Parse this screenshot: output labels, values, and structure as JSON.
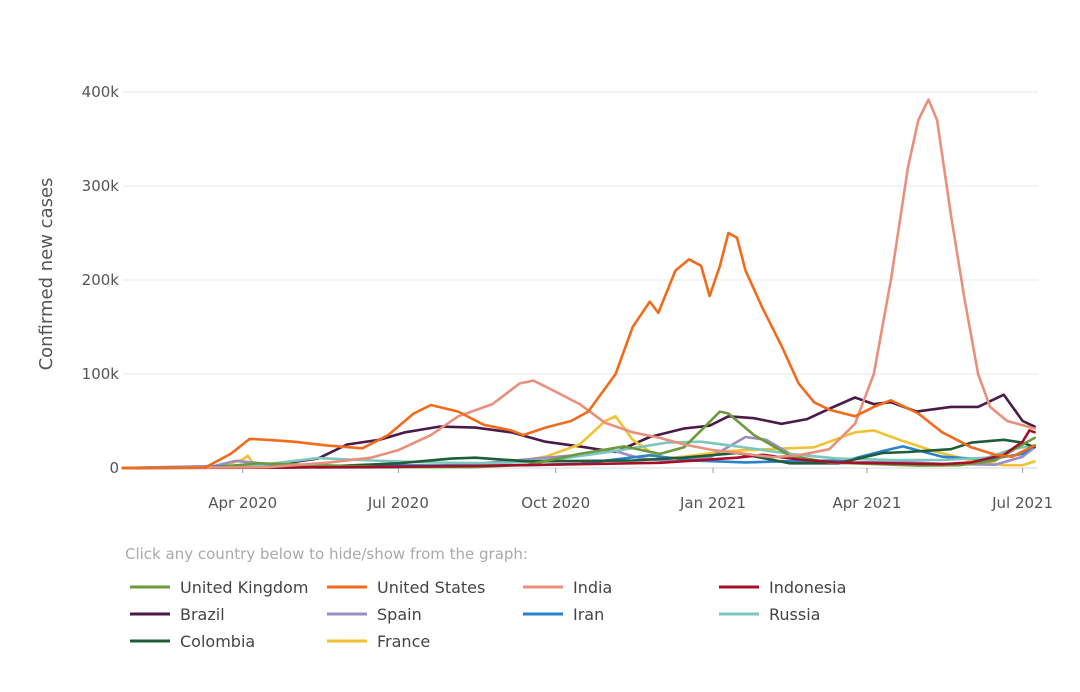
{
  "chart_data": {
    "type": "line",
    "title": "",
    "xlabel": "",
    "ylabel": "Confirmed new cases",
    "ylim": [
      0,
      400000
    ],
    "xlim": [
      "2020-01-22",
      "2021-07-10"
    ],
    "grid": "horizontal",
    "y_ticks": [
      {
        "value": 0,
        "label": "0"
      },
      {
        "value": 100000,
        "label": "100k"
      },
      {
        "value": 200000,
        "label": "200k"
      },
      {
        "value": 300000,
        "label": "300k"
      },
      {
        "value": 400000,
        "label": "400k"
      }
    ],
    "x_ticks": [
      {
        "date": "2020-04-01",
        "label": "Apr 2020"
      },
      {
        "date": "2020-07-01",
        "label": "Jul 2020"
      },
      {
        "date": "2020-10-01",
        "label": "Oct 2020"
      },
      {
        "date": "2021-01-01",
        "label": "Jan 2021"
      },
      {
        "date": "2021-04-01",
        "label": "Apr 2021"
      },
      {
        "date": "2021-07-01",
        "label": "Jul 2021"
      }
    ],
    "legend_hint": "Click any country below to hide/show from the graph:",
    "legend_placement": "bottom",
    "series": [
      {
        "name": "United Kingdom",
        "color": "#6a9a3a",
        "points": [
          [
            "2020-01-22",
            0
          ],
          [
            "2020-03-15",
            500
          ],
          [
            "2020-04-10",
            5000
          ],
          [
            "2020-05-15",
            3000
          ],
          [
            "2020-07-01",
            800
          ],
          [
            "2020-08-15",
            1000
          ],
          [
            "2020-09-15",
            3500
          ],
          [
            "2020-10-15",
            15000
          ],
          [
            "2020-11-10",
            23000
          ],
          [
            "2020-12-01",
            15000
          ],
          [
            "2020-12-15",
            22000
          ],
          [
            "2020-12-25",
            40000
          ],
          [
            "2021-01-05",
            60000
          ],
          [
            "2021-01-10",
            58000
          ],
          [
            "2021-01-25",
            35000
          ],
          [
            "2021-02-15",
            13000
          ],
          [
            "2021-03-10",
            6000
          ],
          [
            "2021-04-01",
            4500
          ],
          [
            "2021-05-01",
            2500
          ],
          [
            "2021-05-25",
            3000
          ],
          [
            "2021-06-15",
            8000
          ],
          [
            "2021-07-01",
            25000
          ],
          [
            "2021-07-08",
            32000
          ]
        ]
      },
      {
        "name": "United States",
        "color": "#f26b1b",
        "points": [
          [
            "2020-01-22",
            0
          ],
          [
            "2020-03-10",
            500
          ],
          [
            "2020-03-25",
            15000
          ],
          [
            "2020-04-05",
            31000
          ],
          [
            "2020-04-15",
            30000
          ],
          [
            "2020-05-01",
            28000
          ],
          [
            "2020-05-20",
            24000
          ],
          [
            "2020-06-10",
            21000
          ],
          [
            "2020-06-25",
            35000
          ],
          [
            "2020-07-10",
            58000
          ],
          [
            "2020-07-20",
            67000
          ],
          [
            "2020-08-05",
            60000
          ],
          [
            "2020-08-20",
            46000
          ],
          [
            "2020-09-05",
            40000
          ],
          [
            "2020-09-12",
            35000
          ],
          [
            "2020-09-25",
            43000
          ],
          [
            "2020-10-10",
            50000
          ],
          [
            "2020-10-20",
            60000
          ],
          [
            "2020-11-05",
            100000
          ],
          [
            "2020-11-15",
            150000
          ],
          [
            "2020-11-25",
            177000
          ],
          [
            "2020-11-30",
            165000
          ],
          [
            "2020-12-10",
            210000
          ],
          [
            "2020-12-18",
            222000
          ],
          [
            "2020-12-25",
            215000
          ],
          [
            "2020-12-30",
            183000
          ],
          [
            "2021-01-05",
            215000
          ],
          [
            "2021-01-10",
            250000
          ],
          [
            "2021-01-15",
            245000
          ],
          [
            "2021-01-20",
            210000
          ],
          [
            "2021-01-30",
            170000
          ],
          [
            "2021-02-10",
            130000
          ],
          [
            "2021-02-20",
            90000
          ],
          [
            "2021-03-01",
            70000
          ],
          [
            "2021-03-10",
            62000
          ],
          [
            "2021-03-25",
            55000
          ],
          [
            "2021-04-05",
            65000
          ],
          [
            "2021-04-15",
            72000
          ],
          [
            "2021-05-01",
            58000
          ],
          [
            "2021-05-15",
            38000
          ],
          [
            "2021-06-01",
            22000
          ],
          [
            "2021-06-15",
            14000
          ],
          [
            "2021-06-25",
            12000
          ],
          [
            "2021-07-08",
            24000
          ]
        ]
      },
      {
        "name": "India",
        "color": "#e8907c",
        "points": [
          [
            "2020-01-22",
            0
          ],
          [
            "2020-04-15",
            800
          ],
          [
            "2020-05-20",
            5500
          ],
          [
            "2020-06-15",
            11000
          ],
          [
            "2020-07-01",
            19000
          ],
          [
            "2020-07-20",
            35000
          ],
          [
            "2020-08-05",
            55000
          ],
          [
            "2020-08-25",
            68000
          ],
          [
            "2020-09-10",
            90000
          ],
          [
            "2020-09-18",
            93000
          ],
          [
            "2020-09-30",
            82000
          ],
          [
            "2020-10-15",
            68000
          ],
          [
            "2020-10-30",
            48000
          ],
          [
            "2020-11-15",
            38000
          ],
          [
            "2020-12-01",
            32000
          ],
          [
            "2020-12-15",
            25000
          ],
          [
            "2021-01-01",
            19000
          ],
          [
            "2021-01-20",
            15000
          ],
          [
            "2021-02-05",
            11500
          ],
          [
            "2021-02-20",
            13500
          ],
          [
            "2021-03-10",
            20000
          ],
          [
            "2021-03-25",
            47000
          ],
          [
            "2021-04-05",
            100000
          ],
          [
            "2021-04-15",
            200000
          ],
          [
            "2021-04-25",
            320000
          ],
          [
            "2021-05-01",
            370000
          ],
          [
            "2021-05-07",
            392000
          ],
          [
            "2021-05-12",
            370000
          ],
          [
            "2021-05-20",
            270000
          ],
          [
            "2021-05-28",
            180000
          ],
          [
            "2021-06-05",
            100000
          ],
          [
            "2021-06-12",
            65000
          ],
          [
            "2021-06-22",
            50000
          ],
          [
            "2021-07-08",
            42000
          ]
        ]
      },
      {
        "name": "Indonesia",
        "color": "#a50f2a",
        "points": [
          [
            "2020-01-22",
            0
          ],
          [
            "2020-04-15",
            300
          ],
          [
            "2020-06-15",
            1200
          ],
          [
            "2020-08-15",
            2200
          ],
          [
            "2020-10-15",
            4000
          ],
          [
            "2020-12-01",
            5500
          ],
          [
            "2021-01-15",
            11000
          ],
          [
            "2021-01-30",
            14000
          ],
          [
            "2021-02-20",
            9000
          ],
          [
            "2021-03-15",
            6000
          ],
          [
            "2021-04-15",
            5000
          ],
          [
            "2021-05-15",
            4000
          ],
          [
            "2021-06-01",
            6000
          ],
          [
            "2021-06-20",
            14000
          ],
          [
            "2021-07-01",
            28000
          ],
          [
            "2021-07-05",
            40000
          ],
          [
            "2021-07-08",
            38000
          ]
        ]
      },
      {
        "name": "Brazil",
        "color": "#4a1a4a",
        "points": [
          [
            "2020-01-22",
            0
          ],
          [
            "2020-04-01",
            1000
          ],
          [
            "2020-04-25",
            5000
          ],
          [
            "2020-05-15",
            10000
          ],
          [
            "2020-06-01",
            25000
          ],
          [
            "2020-06-20",
            30000
          ],
          [
            "2020-07-05",
            38000
          ],
          [
            "2020-07-25",
            44000
          ],
          [
            "2020-08-15",
            43000
          ],
          [
            "2020-09-05",
            38000
          ],
          [
            "2020-09-25",
            28000
          ],
          [
            "2020-10-15",
            23000
          ],
          [
            "2020-11-05",
            17000
          ],
          [
            "2020-11-25",
            33000
          ],
          [
            "2020-12-15",
            42000
          ],
          [
            "2020-12-30",
            45000
          ],
          [
            "2021-01-10",
            55000
          ],
          [
            "2021-01-25",
            53000
          ],
          [
            "2021-02-10",
            47000
          ],
          [
            "2021-02-25",
            52000
          ],
          [
            "2021-03-10",
            63000
          ],
          [
            "2021-03-25",
            75000
          ],
          [
            "2021-04-05",
            68000
          ],
          [
            "2021-04-15",
            70000
          ],
          [
            "2021-04-30",
            60000
          ],
          [
            "2021-05-20",
            65000
          ],
          [
            "2021-06-05",
            65000
          ],
          [
            "2021-06-20",
            78000
          ],
          [
            "2021-07-01",
            50000
          ],
          [
            "2021-07-08",
            44000
          ]
        ]
      },
      {
        "name": "Spain",
        "color": "#9b8ec4",
        "points": [
          [
            "2020-01-22",
            0
          ],
          [
            "2020-03-15",
            2000
          ],
          [
            "2020-03-28",
            7500
          ],
          [
            "2020-04-15",
            4500
          ],
          [
            "2020-05-15",
            500
          ],
          [
            "2020-07-01",
            500
          ],
          [
            "2020-08-15",
            4500
          ],
          [
            "2020-09-20",
            10000
          ],
          [
            "2020-10-15",
            14000
          ],
          [
            "2020-11-01",
            20000
          ],
          [
            "2020-11-20",
            10000
          ],
          [
            "2020-12-10",
            7000
          ],
          [
            "2020-12-31",
            12000
          ],
          [
            "2021-01-20",
            33000
          ],
          [
            "2021-02-01",
            30000
          ],
          [
            "2021-02-20",
            10000
          ],
          [
            "2021-03-15",
            5000
          ],
          [
            "2021-04-15",
            7000
          ],
          [
            "2021-05-15",
            4500
          ],
          [
            "2021-06-15",
            3500
          ],
          [
            "2021-07-01",
            12000
          ],
          [
            "2021-07-08",
            22000
          ]
        ]
      },
      {
        "name": "Iran",
        "color": "#2a83c8",
        "points": [
          [
            "2020-01-22",
            0
          ],
          [
            "2020-03-10",
            800
          ],
          [
            "2020-04-01",
            3000
          ],
          [
            "2020-05-10",
            1500
          ],
          [
            "2020-06-10",
            3000
          ],
          [
            "2020-08-01",
            2500
          ],
          [
            "2020-09-15",
            3000
          ],
          [
            "2020-10-15",
            4500
          ],
          [
            "2020-11-25",
            13500
          ],
          [
            "2020-12-20",
            8000
          ],
          [
            "2021-01-20",
            6000
          ],
          [
            "2021-02-20",
            7500
          ],
          [
            "2021-03-20",
            8000
          ],
          [
            "2021-04-10",
            18000
          ],
          [
            "2021-04-22",
            23000
          ],
          [
            "2021-05-15",
            12000
          ],
          [
            "2021-06-10",
            9000
          ],
          [
            "2021-07-01",
            15000
          ],
          [
            "2021-07-08",
            24000
          ]
        ]
      },
      {
        "name": "Russia",
        "color": "#7ec7bf",
        "points": [
          [
            "2020-01-22",
            0
          ],
          [
            "2020-04-01",
            800
          ],
          [
            "2020-05-01",
            7500
          ],
          [
            "2020-05-15",
            10500
          ],
          [
            "2020-06-15",
            8000
          ],
          [
            "2020-07-20",
            5800
          ],
          [
            "2020-08-30",
            5000
          ],
          [
            "2020-10-01",
            9000
          ],
          [
            "2020-11-01",
            17000
          ],
          [
            "2020-12-05",
            27000
          ],
          [
            "2020-12-25",
            28000
          ],
          [
            "2021-01-15",
            23000
          ],
          [
            "2021-02-15",
            15000
          ],
          [
            "2021-03-15",
            10000
          ],
          [
            "2021-04-15",
            8500
          ],
          [
            "2021-05-15",
            8500
          ],
          [
            "2021-06-10",
            11000
          ],
          [
            "2021-06-25",
            20000
          ],
          [
            "2021-07-08",
            24000
          ]
        ]
      },
      {
        "name": "Colombia",
        "color": "#1e5c3a",
        "points": [
          [
            "2020-01-22",
            0
          ],
          [
            "2020-05-01",
            500
          ],
          [
            "2020-06-01",
            2500
          ],
          [
            "2020-07-01",
            5000
          ],
          [
            "2020-08-01",
            10000
          ],
          [
            "2020-08-15",
            11000
          ],
          [
            "2020-09-15",
            7000
          ],
          [
            "2020-10-15",
            7500
          ],
          [
            "2020-11-15",
            8000
          ],
          [
            "2020-12-15",
            11000
          ],
          [
            "2021-01-15",
            16000
          ],
          [
            "2021-02-15",
            5000
          ],
          [
            "2021-03-15",
            5000
          ],
          [
            "2021-04-10",
            16000
          ],
          [
            "2021-04-25",
            17000
          ],
          [
            "2021-05-20",
            20000
          ],
          [
            "2021-06-01",
            27000
          ],
          [
            "2021-06-20",
            30000
          ],
          [
            "2021-07-01",
            27000
          ],
          [
            "2021-07-08",
            22000
          ]
        ]
      },
      {
        "name": "France",
        "color": "#f1c232",
        "points": [
          [
            "2020-01-22",
            0
          ],
          [
            "2020-03-20",
            2000
          ],
          [
            "2020-04-01",
            9000
          ],
          [
            "2020-04-04",
            13000
          ],
          [
            "2020-04-08",
            2000
          ],
          [
            "2020-04-25",
            1000
          ],
          [
            "2020-06-15",
            500
          ],
          [
            "2020-08-01",
            1500
          ],
          [
            "2020-09-01",
            5000
          ],
          [
            "2020-09-25",
            12000
          ],
          [
            "2020-10-15",
            25000
          ],
          [
            "2020-10-30",
            50000
          ],
          [
            "2020-11-05",
            55000
          ],
          [
            "2020-11-15",
            30000
          ],
          [
            "2020-12-01",
            10000
          ],
          [
            "2020-12-15",
            12000
          ],
          [
            "2021-01-10",
            18000
          ],
          [
            "2021-02-01",
            20000
          ],
          [
            "2021-03-01",
            22000
          ],
          [
            "2021-03-25",
            38000
          ],
          [
            "2021-04-05",
            40000
          ],
          [
            "2021-04-20",
            30000
          ],
          [
            "2021-05-10",
            18000
          ],
          [
            "2021-06-01",
            8000
          ],
          [
            "2021-06-20",
            3000
          ],
          [
            "2021-07-01",
            3000
          ],
          [
            "2021-07-08",
            7000
          ]
        ]
      }
    ]
  }
}
